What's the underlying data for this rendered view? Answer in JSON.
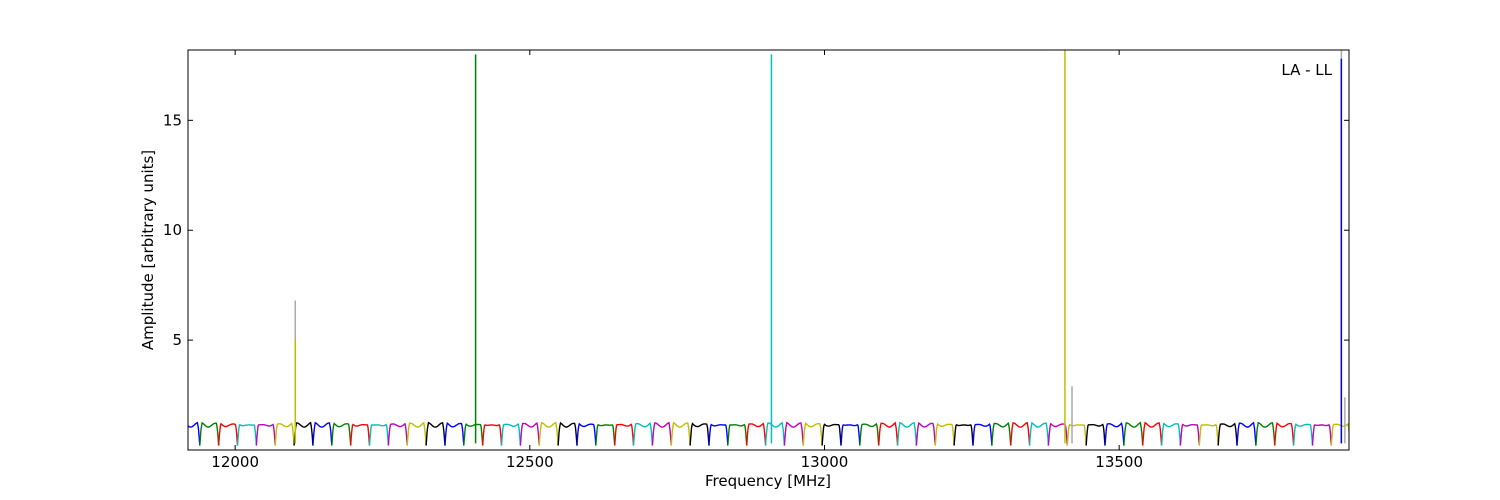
{
  "chart_data": {
    "type": "line",
    "title": "",
    "xlabel": "Frequency [MHz]",
    "ylabel": "Amplitude [arbitrary units]",
    "xlim": [
      11920,
      13890
    ],
    "ylim": [
      0,
      18.2
    ],
    "x_ticks": [
      12000,
      12500,
      13000,
      13500
    ],
    "y_ticks": [
      5,
      10,
      15
    ],
    "grid": false,
    "legend": "none",
    "annotation": "LA - LL",
    "channel_width_mhz": 32,
    "series_colors": [
      "#0000ff",
      "#008000",
      "#ff0000",
      "#00bfbf",
      "#bf00bf",
      "#bfbf00",
      "#000000"
    ],
    "baseline_level": 1.15,
    "dip_level": 0.2,
    "spikes": [
      {
        "x": 12102,
        "value": 6.8,
        "color": "#aaaaaa"
      },
      {
        "x": 12102,
        "value": 5.0,
        "color": "#bfbf00"
      },
      {
        "x": 12408,
        "value": 18.0,
        "color": "#008000"
      },
      {
        "x": 12910,
        "value": 18.0,
        "color": "#00bfbf"
      },
      {
        "x": 13408,
        "value": 18.2,
        "color": "#bfbf00"
      },
      {
        "x": 13420,
        "value": 2.9,
        "color": "#aaaaaa"
      },
      {
        "x": 13877,
        "value": 18.2,
        "color": "#aaaaaa"
      },
      {
        "x": 13877,
        "value": 17.8,
        "color": "#0000ff"
      },
      {
        "x": 13883,
        "value": 2.4,
        "color": "#aaaaaa"
      }
    ]
  }
}
